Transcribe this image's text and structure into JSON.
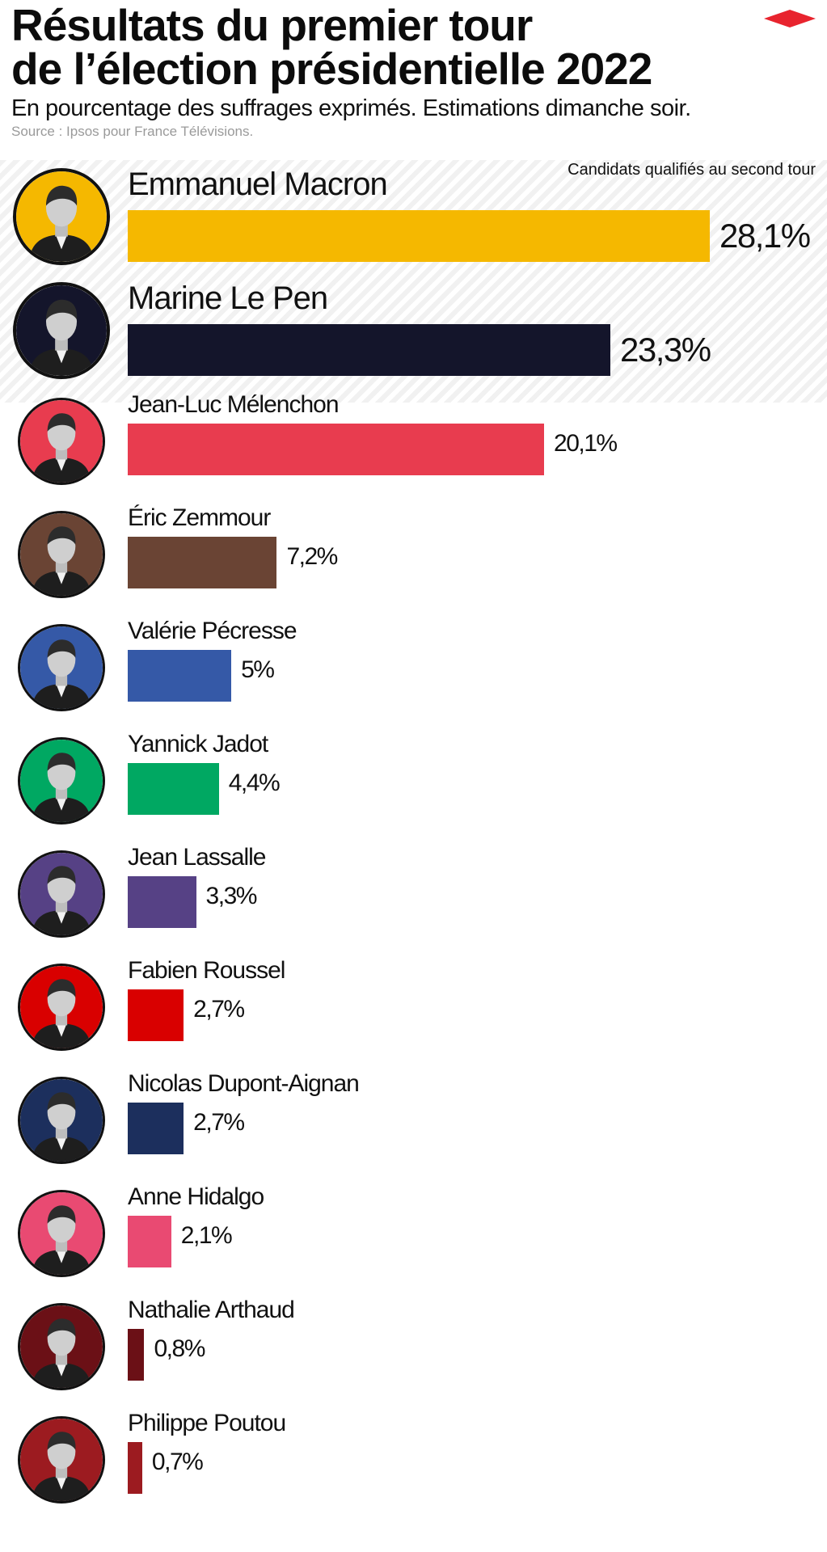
{
  "header": {
    "title_line1": "Résultats du premier tour",
    "title_line2": "de l’élection présidentielle 2022",
    "subtitle": "En pourcentage des suffrages exprimés. Estimations dimanche soir.",
    "source": "Source : Ipsos pour France Télévisions."
  },
  "qualified_label": "Candidats qualifiés au second tour",
  "colors": {
    "logo": "#e8242e",
    "qualified_bg": "#f1f1f1"
  },
  "chart_data": {
    "type": "bar",
    "orientation": "horizontal",
    "title": "Résultats du premier tour de l’élection présidentielle 2022",
    "subtitle": "En pourcentage des suffrages exprimés. Estimations dimanche soir.",
    "xlim": [
      0,
      28.1
    ],
    "categories": [
      "Emmanuel Macron",
      "Marine Le Pen",
      "Jean-Luc Mélenchon",
      "Éric Zemmour",
      "Valérie Pécresse",
      "Yannick Jadot",
      "Jean Lassalle",
      "Fabien Roussel",
      "Nicolas Dupont-Aignan",
      "Anne Hidalgo",
      "Nathalie Arthaud",
      "Philippe Poutou"
    ],
    "values": [
      28.1,
      23.3,
      20.1,
      7.2,
      5,
      4.4,
      3.3,
      2.7,
      2.7,
      2.1,
      0.8,
      0.7
    ],
    "value_labels": [
      "28,1%",
      "23,3%",
      "20,1%",
      "7,2%",
      "5%",
      "4,4%",
      "3,3%",
      "2,7%",
      "2,7%",
      "2,1%",
      "0,8%",
      "0,7%"
    ],
    "colors": [
      "#f5b800",
      "#14152b",
      "#e83c4f",
      "#6a4434",
      "#3559a7",
      "#00a862",
      "#564185",
      "#d90000",
      "#1c2f5d",
      "#e94a72",
      "#6b1016",
      "#9c1b20"
    ],
    "qualified": [
      true,
      true,
      false,
      false,
      false,
      false,
      false,
      false,
      false,
      false,
      false,
      false
    ],
    "annotations": [
      "Candidats qualifiés au second tour"
    ]
  }
}
